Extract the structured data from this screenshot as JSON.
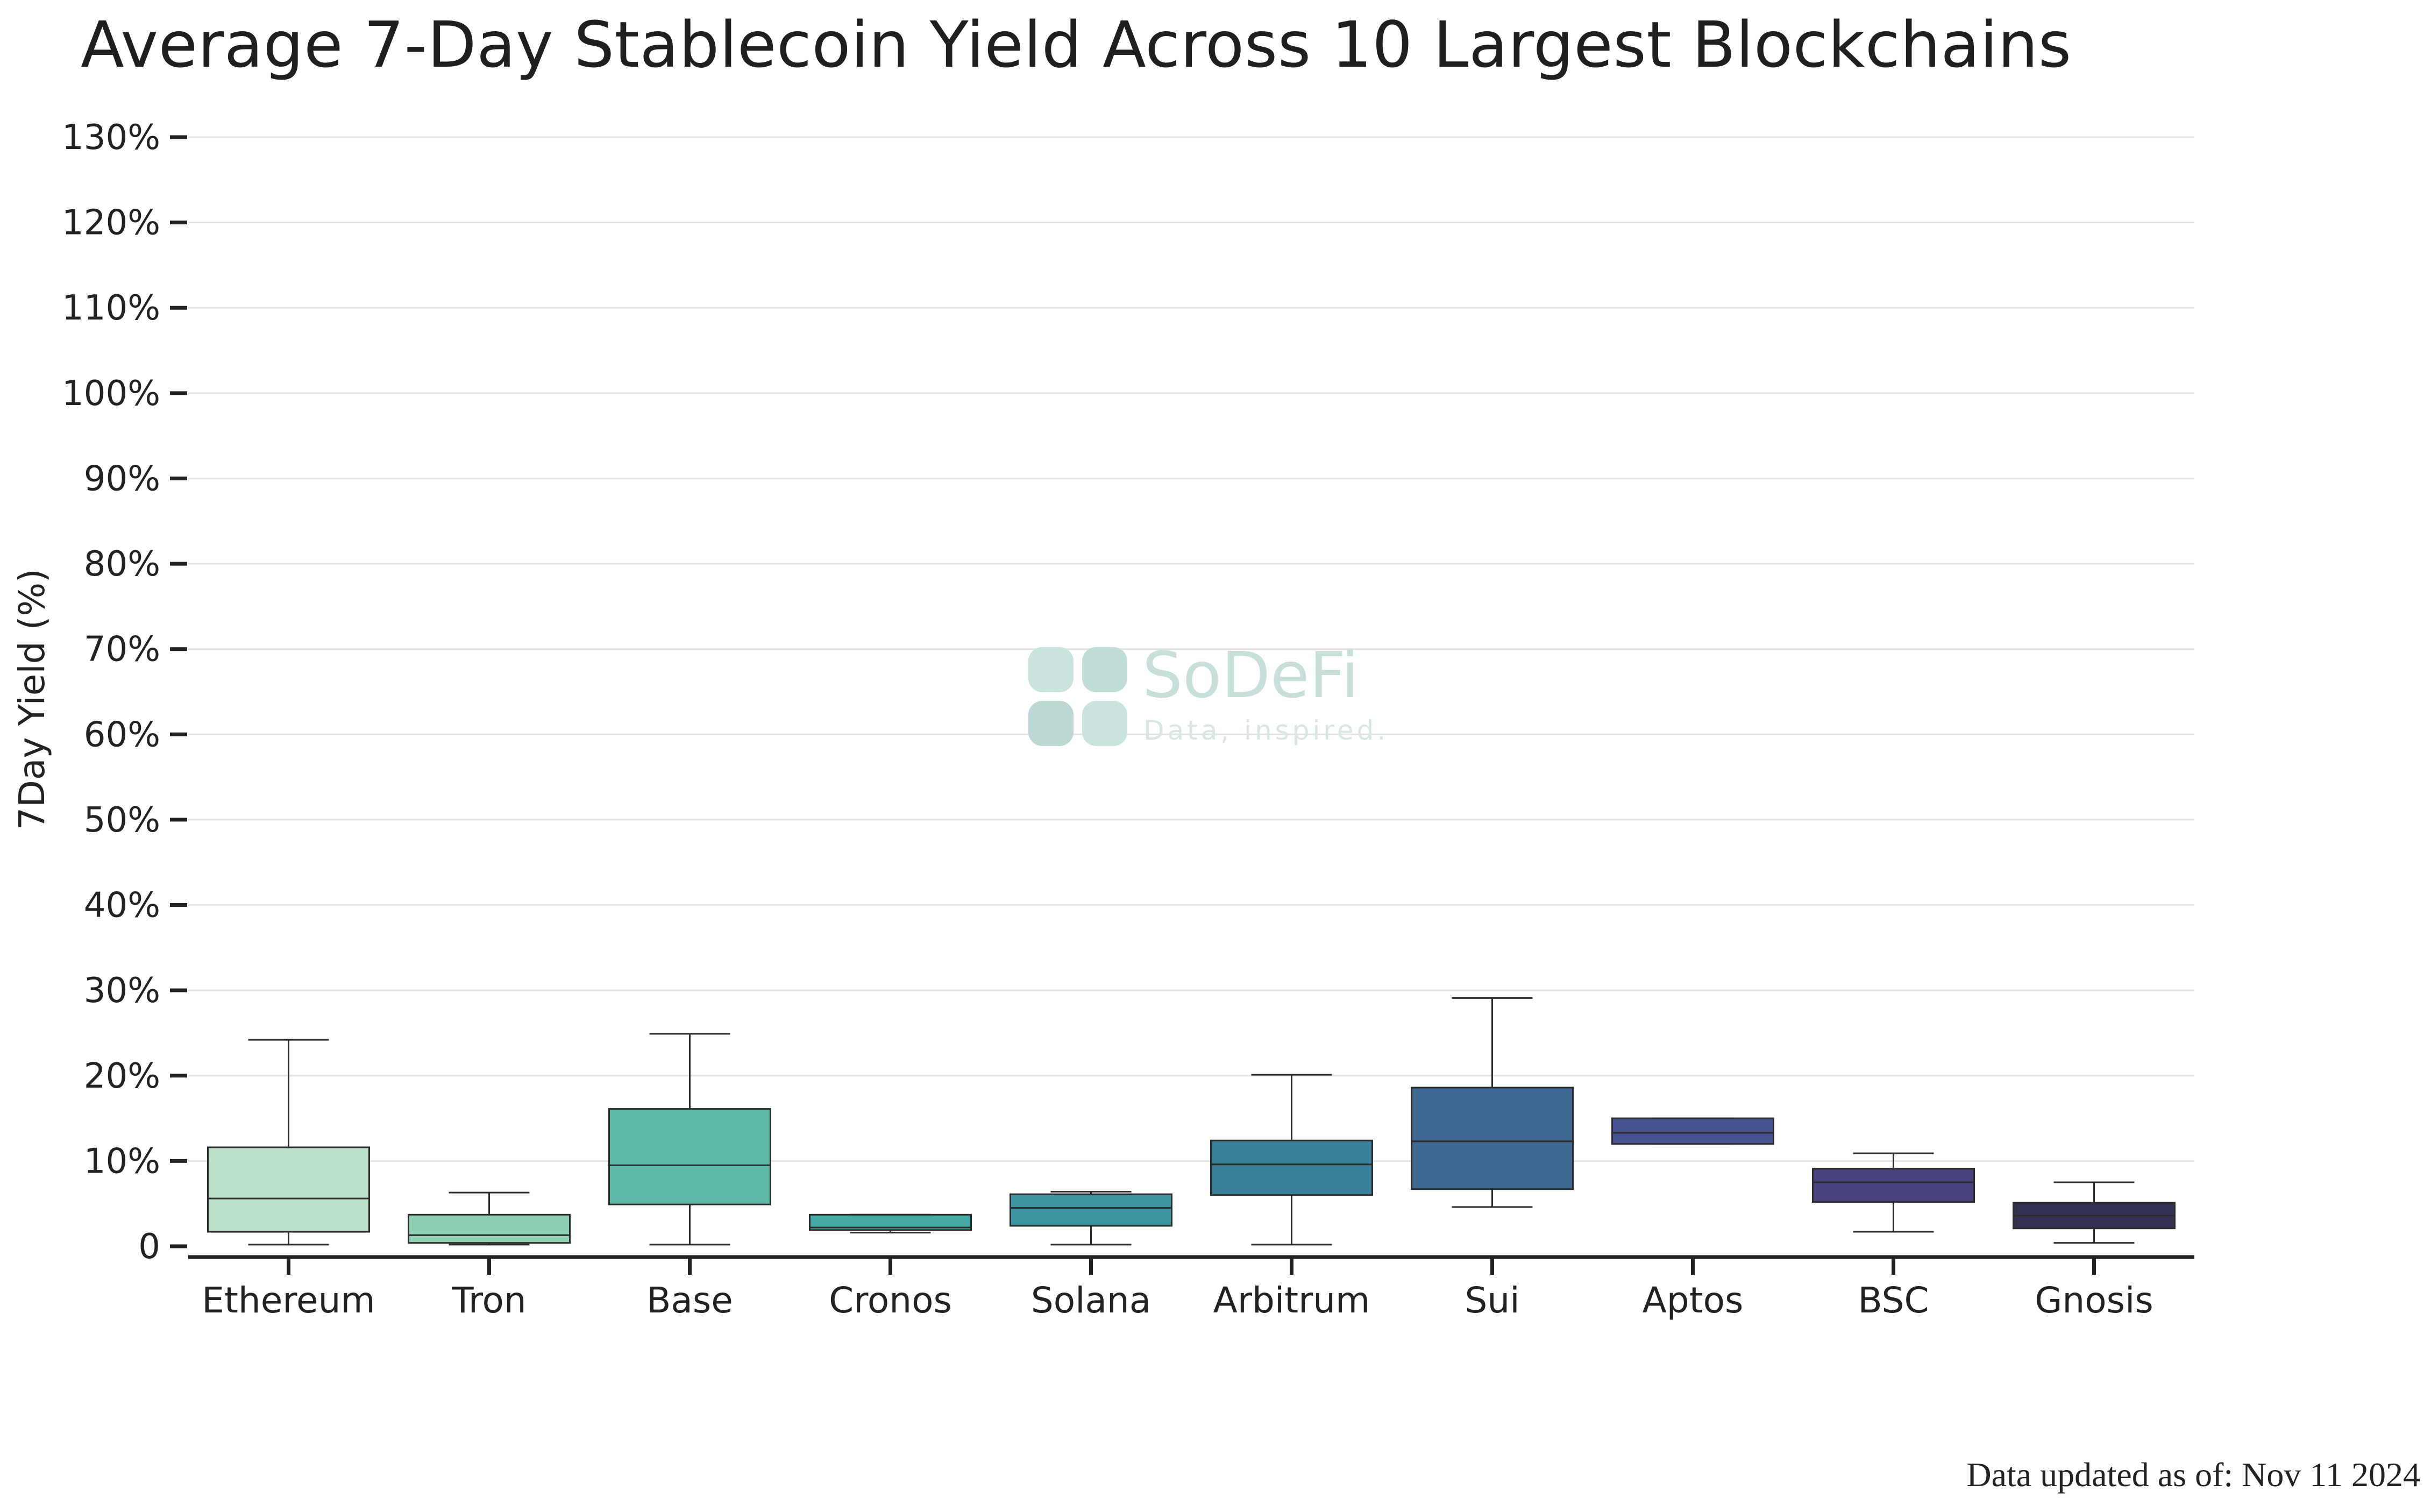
{
  "chart_data": {
    "type": "box",
    "title": "Average 7-Day Stablecoin Yield Across 10 Largest Blockchains",
    "ylabel": "7Day Yield (%)",
    "xlabel": "",
    "ylim": [
      0,
      130
    ],
    "yticks": [
      0,
      10,
      20,
      30,
      40,
      50,
      60,
      70,
      80,
      90,
      100,
      110,
      120,
      130
    ],
    "ytick_labels": [
      "0",
      "10%",
      "20%",
      "30%",
      "40%",
      "50%",
      "60%",
      "70%",
      "80%",
      "90%",
      "100%",
      "110%",
      "120%",
      "130%"
    ],
    "grid": true,
    "categories": [
      "Ethereum",
      "Tron",
      "Base",
      "Cronos",
      "Solana",
      "Arbitrum",
      "Sui",
      "Aptos",
      "BSC",
      "Gnosis"
    ],
    "boxes": [
      {
        "name": "Ethereum",
        "min": 0.2,
        "q1": 1.7,
        "median": 5.6,
        "q3": 11.6,
        "max": 24.2,
        "color": "#bde2cb"
      },
      {
        "name": "Tron",
        "min": 0.2,
        "q1": 0.4,
        "median": 1.3,
        "q3": 3.7,
        "max": 6.3,
        "color": "#8fd0b5"
      },
      {
        "name": "Base",
        "min": 0.2,
        "q1": 4.9,
        "median": 9.5,
        "q3": 16.1,
        "max": 24.9,
        "color": "#5fb9a8"
      },
      {
        "name": "Cronos",
        "min": 1.6,
        "q1": 1.9,
        "median": 2.2,
        "q3": 3.7,
        "max": 3.7,
        "color": "#47a9a5"
      },
      {
        "name": "Solana",
        "min": 0.2,
        "q1": 2.4,
        "median": 4.5,
        "q3": 6.1,
        "max": 6.4,
        "color": "#3a94a1"
      },
      {
        "name": "Arbitrum",
        "min": 0.2,
        "q1": 6.0,
        "median": 9.6,
        "q3": 12.4,
        "max": 20.1,
        "color": "#387e97"
      },
      {
        "name": "Sui",
        "min": 4.6,
        "q1": 6.7,
        "median": 12.3,
        "q3": 18.6,
        "max": 29.1,
        "color": "#3f6993"
      },
      {
        "name": "Aptos",
        "min": 12.0,
        "q1": 12.0,
        "median": 13.3,
        "q3": 15.0,
        "max": 15.0,
        "color": "#465393"
      },
      {
        "name": "BSC",
        "min": 1.7,
        "q1": 5.2,
        "median": 7.5,
        "q3": 9.1,
        "max": 10.9,
        "color": "#45427e"
      },
      {
        "name": "Gnosis",
        "min": 0.4,
        "q1": 2.1,
        "median": 3.6,
        "q3": 5.1,
        "max": 7.5,
        "color": "#343252"
      }
    ]
  },
  "watermark": {
    "name": "SoDeFi",
    "tagline": "Data, inspired."
  },
  "footer": {
    "note": "Data updated as of: Nov 11 2024"
  },
  "colors": {
    "grid": "#e3e3e3",
    "axis": "#222222",
    "box_edge": "#2b2b2b",
    "watermark_light": "#c9e3df",
    "watermark_dark": "#bcd8d4"
  }
}
